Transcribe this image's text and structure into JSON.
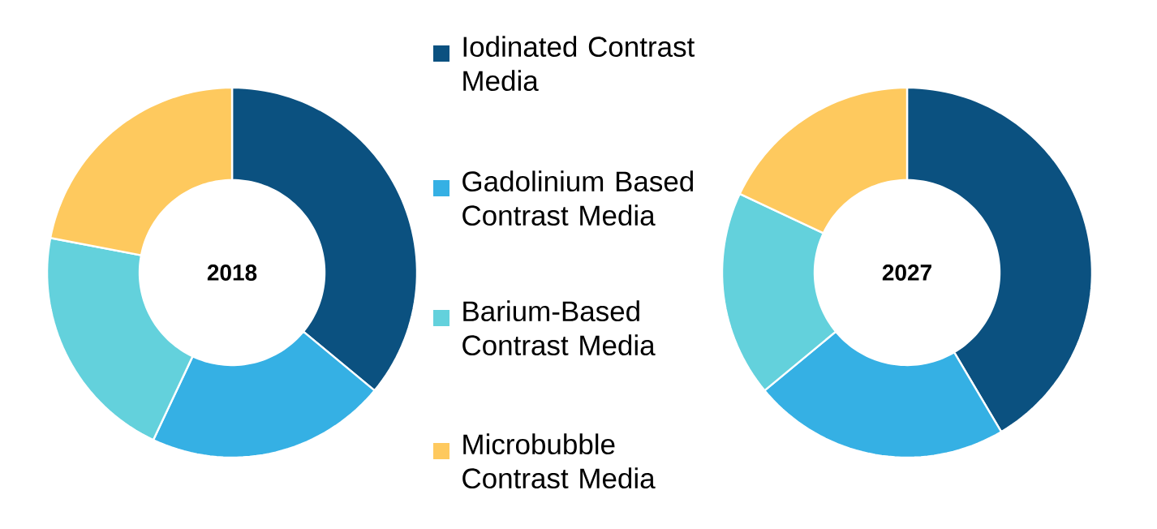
{
  "chart_data": [
    {
      "type": "donut",
      "title": "2018",
      "categories": [
        "Iodinated Contrast Media",
        "Gadolinium Based Contrast Media",
        "Barium-Based Contrast Media",
        "Microbubble Contrast Media"
      ],
      "values": [
        36,
        21,
        21,
        22
      ],
      "colors": [
        "#0b5180",
        "#35b0e4",
        "#63d1dc",
        "#fec95e"
      ],
      "legend": "right"
    },
    {
      "type": "donut",
      "title": "2027",
      "categories": [
        null,
        null,
        null,
        null
      ],
      "values": [
        41.5,
        22.5,
        18,
        18
      ],
      "colors": [
        "#0b5180",
        "#35b0e4",
        "#63d1dc",
        "#fec95e"
      ]
    }
  ]
}
